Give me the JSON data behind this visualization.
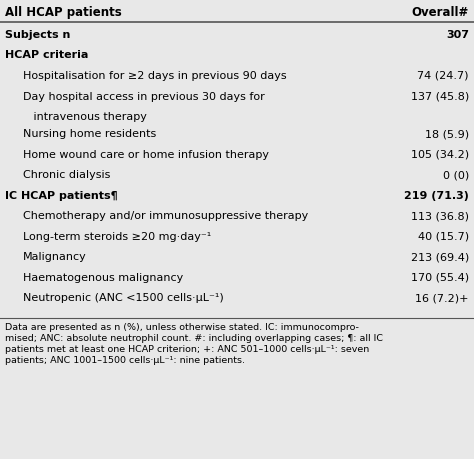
{
  "title_left": "All HCAP patients",
  "title_right": "Overall#",
  "background_color": "#e8e8e8",
  "text_color": "#000000",
  "line_color": "#555555",
  "rows": [
    {
      "label": "Subjects n",
      "value": "307",
      "indent": 0,
      "bold": true,
      "wrap": false
    },
    {
      "label": "HCAP criteria",
      "value": "",
      "indent": 0,
      "bold": true,
      "wrap": false
    },
    {
      "label": "Hospitalisation for ≥2 days in previous 90 days",
      "value": "74 (24.7)",
      "indent": 1,
      "bold": false,
      "wrap": false
    },
    {
      "label": "Day hospital access in previous 30 days for",
      "value": "137 (45.8)",
      "indent": 1,
      "bold": false,
      "wrap": true
    },
    {
      "label": "   intravenous therapy",
      "value": "",
      "indent": 1,
      "bold": false,
      "wrap": false,
      "continuation": true
    },
    {
      "label": "Nursing home residents",
      "value": "18 (5.9)",
      "indent": 1,
      "bold": false,
      "wrap": false
    },
    {
      "label": "Home wound care or home infusion therapy",
      "value": "105 (34.2)",
      "indent": 1,
      "bold": false,
      "wrap": false
    },
    {
      "label": "Chronic dialysis",
      "value": "0 (0)",
      "indent": 1,
      "bold": false,
      "wrap": false
    },
    {
      "label": "IC HCAP patients¶",
      "value": "219 (71.3)",
      "indent": 0,
      "bold": true,
      "wrap": false
    },
    {
      "label": "Chemotherapy and/or immunosuppressive therapy",
      "value": "113 (36.8)",
      "indent": 1,
      "bold": false,
      "wrap": false
    },
    {
      "label": "Long-term steroids ≥20 mg·day⁻¹",
      "value": "40 (15.7)",
      "indent": 1,
      "bold": false,
      "wrap": false
    },
    {
      "label": "Malignancy",
      "value": "213 (69.4)",
      "indent": 1,
      "bold": false,
      "wrap": false
    },
    {
      "label": "Haematogenous malignancy",
      "value": "170 (55.4)",
      "indent": 1,
      "bold": false,
      "wrap": false
    },
    {
      "label": "Neutropenic (ANC <1500 cells·μL⁻¹)",
      "value": "16 (7.2)+",
      "indent": 1,
      "bold": false,
      "wrap": false
    }
  ],
  "footnote_lines": [
    "Data are presented as n (%), unless otherwise stated. IC: immunocompro-",
    "mised; ANC: absolute neutrophil count. #: including overlapping cases; ¶: all IC",
    "patients met at least one HCAP criterion; +: ANC 501–1000 cells·μL⁻¹: seven",
    "patients; ANC 1001–1500 cells·μL⁻¹: nine patients."
  ],
  "font_size": 8.0,
  "header_font_size": 8.5,
  "footnote_font_size": 6.8
}
